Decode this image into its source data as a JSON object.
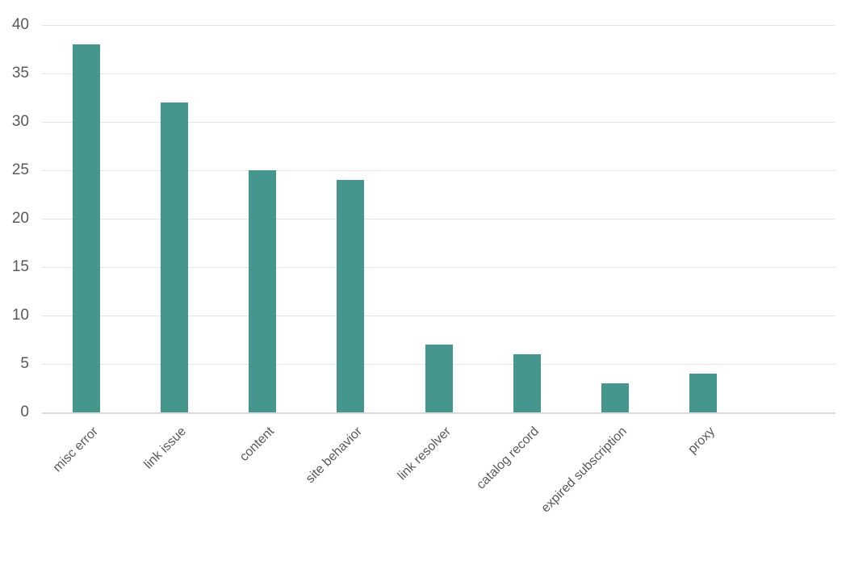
{
  "chart_data": {
    "type": "bar",
    "categories": [
      "misc error",
      "link issue",
      "content",
      "site behavior",
      "link resolver",
      "catalog record",
      "expired subscription",
      "proxy"
    ],
    "values": [
      38,
      32,
      25,
      24,
      7,
      6,
      3,
      4
    ],
    "title": "",
    "xlabel": "",
    "ylabel": "",
    "ylim": [
      0,
      40
    ],
    "ytick_interval": 5,
    "ytick_labels": [
      "0",
      "5",
      "10",
      "15",
      "20",
      "25",
      "30",
      "35",
      "40"
    ],
    "grid": true,
    "legend": false,
    "bar_color": "#45968c",
    "tick_label_color": "#595959",
    "gridline_color": "#e4e4e4",
    "axis_line_color": "#d9d9d9",
    "background_color": "#ffffff",
    "trailing_empty_slots": 1
  }
}
